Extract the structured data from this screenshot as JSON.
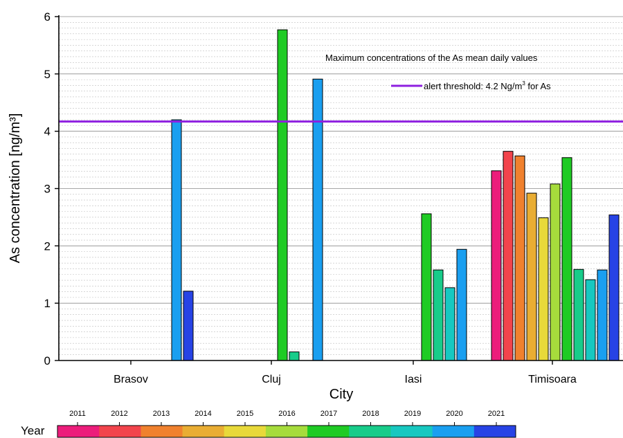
{
  "chart_data": {
    "type": "bar",
    "title": "Maximum concentrations of the As mean daily values",
    "xlabel": "City",
    "ylabel": "As concentration [ng/m³]",
    "ylim": [
      0,
      6
    ],
    "yticks": [
      "0",
      "1",
      "2",
      "3",
      "4",
      "5",
      "6"
    ],
    "grid": true,
    "categories": [
      "Brasov",
      "Cluj",
      "Iasi",
      "Timisoara"
    ],
    "series": [
      {
        "name": "2011",
        "color": "#ec1d7b",
        "values": [
          null,
          null,
          null,
          3.31
        ]
      },
      {
        "name": "2012",
        "color": "#f2444c",
        "values": [
          null,
          null,
          null,
          3.65
        ]
      },
      {
        "name": "2013",
        "color": "#f0812e",
        "values": [
          null,
          null,
          null,
          3.57
        ]
      },
      {
        "name": "2014",
        "color": "#e9ad33",
        "values": [
          null,
          null,
          null,
          2.92
        ]
      },
      {
        "name": "2015",
        "color": "#e8d93a",
        "values": [
          null,
          null,
          null,
          2.49
        ]
      },
      {
        "name": "2016",
        "color": "#a6dc3c",
        "values": [
          null,
          null,
          null,
          3.08
        ]
      },
      {
        "name": "2017",
        "color": "#1fcb24",
        "values": [
          null,
          5.77,
          2.56,
          3.54
        ]
      },
      {
        "name": "2018",
        "color": "#18cc8a",
        "values": [
          null,
          0.15,
          1.58,
          1.59
        ]
      },
      {
        "name": "2019",
        "color": "#17c8c0",
        "values": [
          null,
          null,
          1.27,
          1.41
        ]
      },
      {
        "name": "2020",
        "color": "#1a9ff0",
        "values": [
          4.2,
          4.91,
          1.94,
          1.58
        ]
      },
      {
        "name": "2021",
        "color": "#2743e5",
        "values": [
          1.21,
          null,
          null,
          2.54
        ]
      }
    ],
    "threshold": {
      "value": 4.17,
      "color": "#8e1fe0",
      "label": "alert threshold: 4.2 Ng/m",
      "label_sup": "3",
      "label_end": " for As"
    },
    "legend_position": "top-right",
    "colorbar": {
      "title": "Year",
      "labels": [
        "2011",
        "2012",
        "2013",
        "2014",
        "2015",
        "2016",
        "2017",
        "2018",
        "2019",
        "2020",
        "2021"
      ]
    }
  }
}
